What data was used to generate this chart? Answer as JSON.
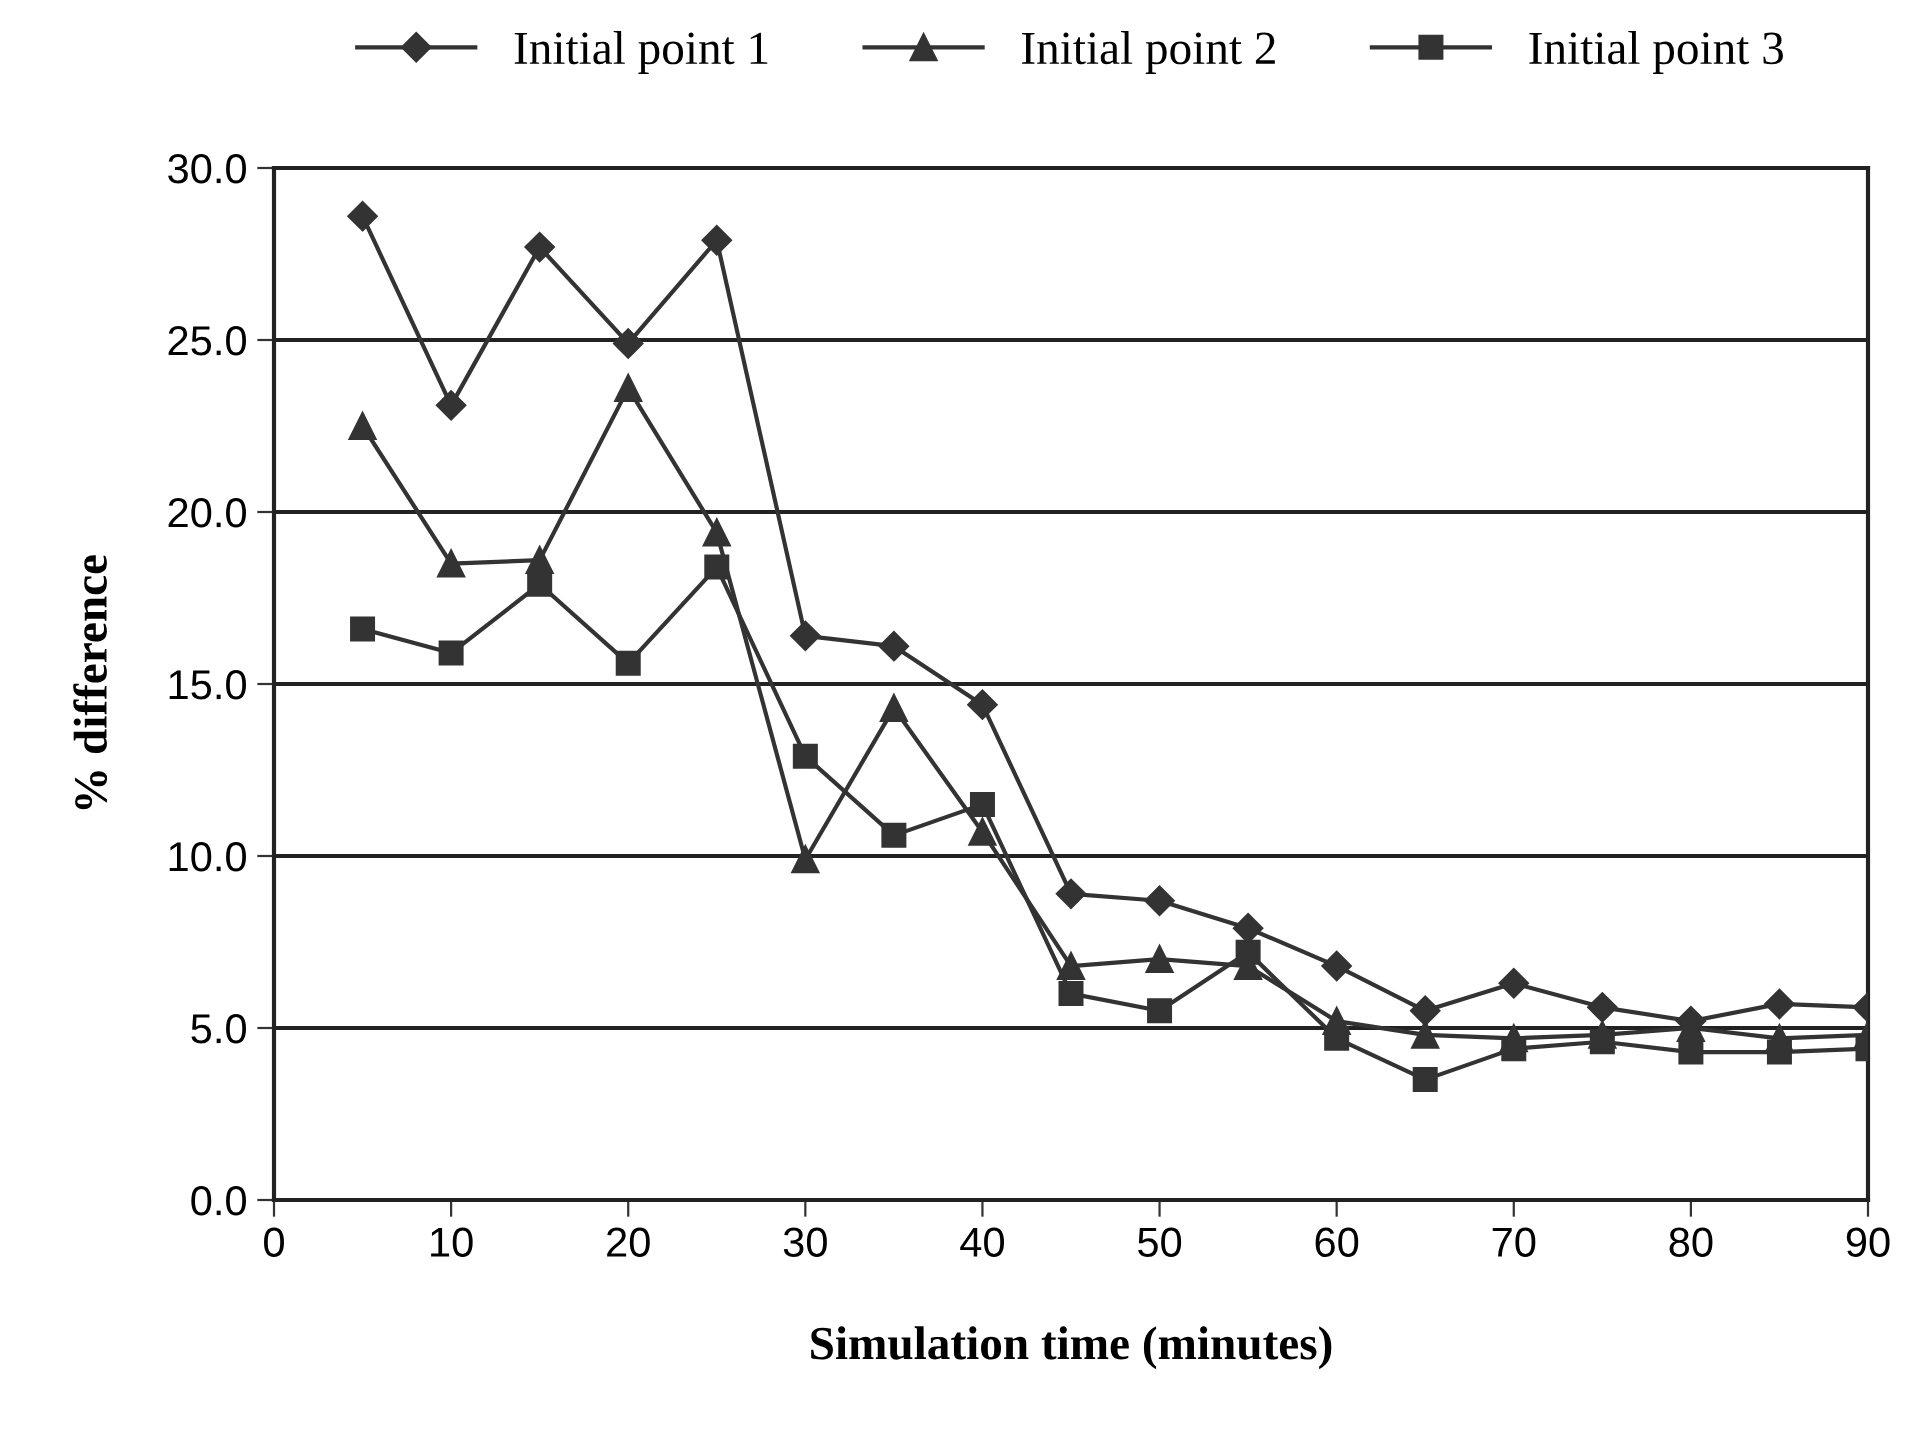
{
  "chart_data": {
    "type": "line",
    "xlabel": "Simulation time (minutes)",
    "ylabel": "% difference",
    "x": [
      5,
      10,
      15,
      20,
      25,
      30,
      35,
      40,
      45,
      50,
      55,
      60,
      65,
      70,
      75,
      80,
      85,
      90
    ],
    "series": [
      {
        "name": "Initial point 1",
        "color": "#333333",
        "marker": "diamond",
        "values": [
          28.6,
          23.1,
          27.7,
          24.9,
          27.9,
          16.4,
          16.1,
          14.4,
          8.9,
          8.7,
          7.9,
          6.8,
          5.5,
          6.3,
          5.6,
          5.2,
          5.7,
          5.6
        ]
      },
      {
        "name": "Initial point 2",
        "color": "#333333",
        "marker": "triangle",
        "values": [
          22.5,
          18.5,
          18.6,
          23.6,
          19.4,
          9.9,
          14.3,
          10.7,
          6.8,
          7.0,
          6.8,
          5.2,
          4.8,
          4.7,
          4.8,
          5.0,
          4.7,
          4.8
        ]
      },
      {
        "name": "Initial point 3",
        "color": "#333333",
        "marker": "square",
        "values": [
          16.6,
          15.9,
          17.9,
          15.6,
          18.4,
          12.9,
          10.6,
          11.5,
          6.0,
          5.5,
          7.2,
          4.7,
          3.5,
          4.4,
          4.6,
          4.3,
          4.3,
          4.4
        ]
      }
    ],
    "xlim": [
      0,
      90
    ],
    "xticks": [
      0,
      10,
      20,
      30,
      40,
      50,
      60,
      70,
      80,
      90
    ],
    "ylim": [
      0,
      30
    ],
    "yticks": [
      {
        "value": 0,
        "label": "0.0"
      },
      {
        "value": 5,
        "label": "5.0"
      },
      {
        "value": 10,
        "label": "10.0"
      },
      {
        "value": 15,
        "label": "15.0"
      },
      {
        "value": 20,
        "label": "20.0"
      },
      {
        "value": 25,
        "label": "25.0"
      },
      {
        "value": 30,
        "label": "30.0"
      }
    ],
    "grid": "y",
    "legend": "top",
    "line_style": "solid"
  }
}
